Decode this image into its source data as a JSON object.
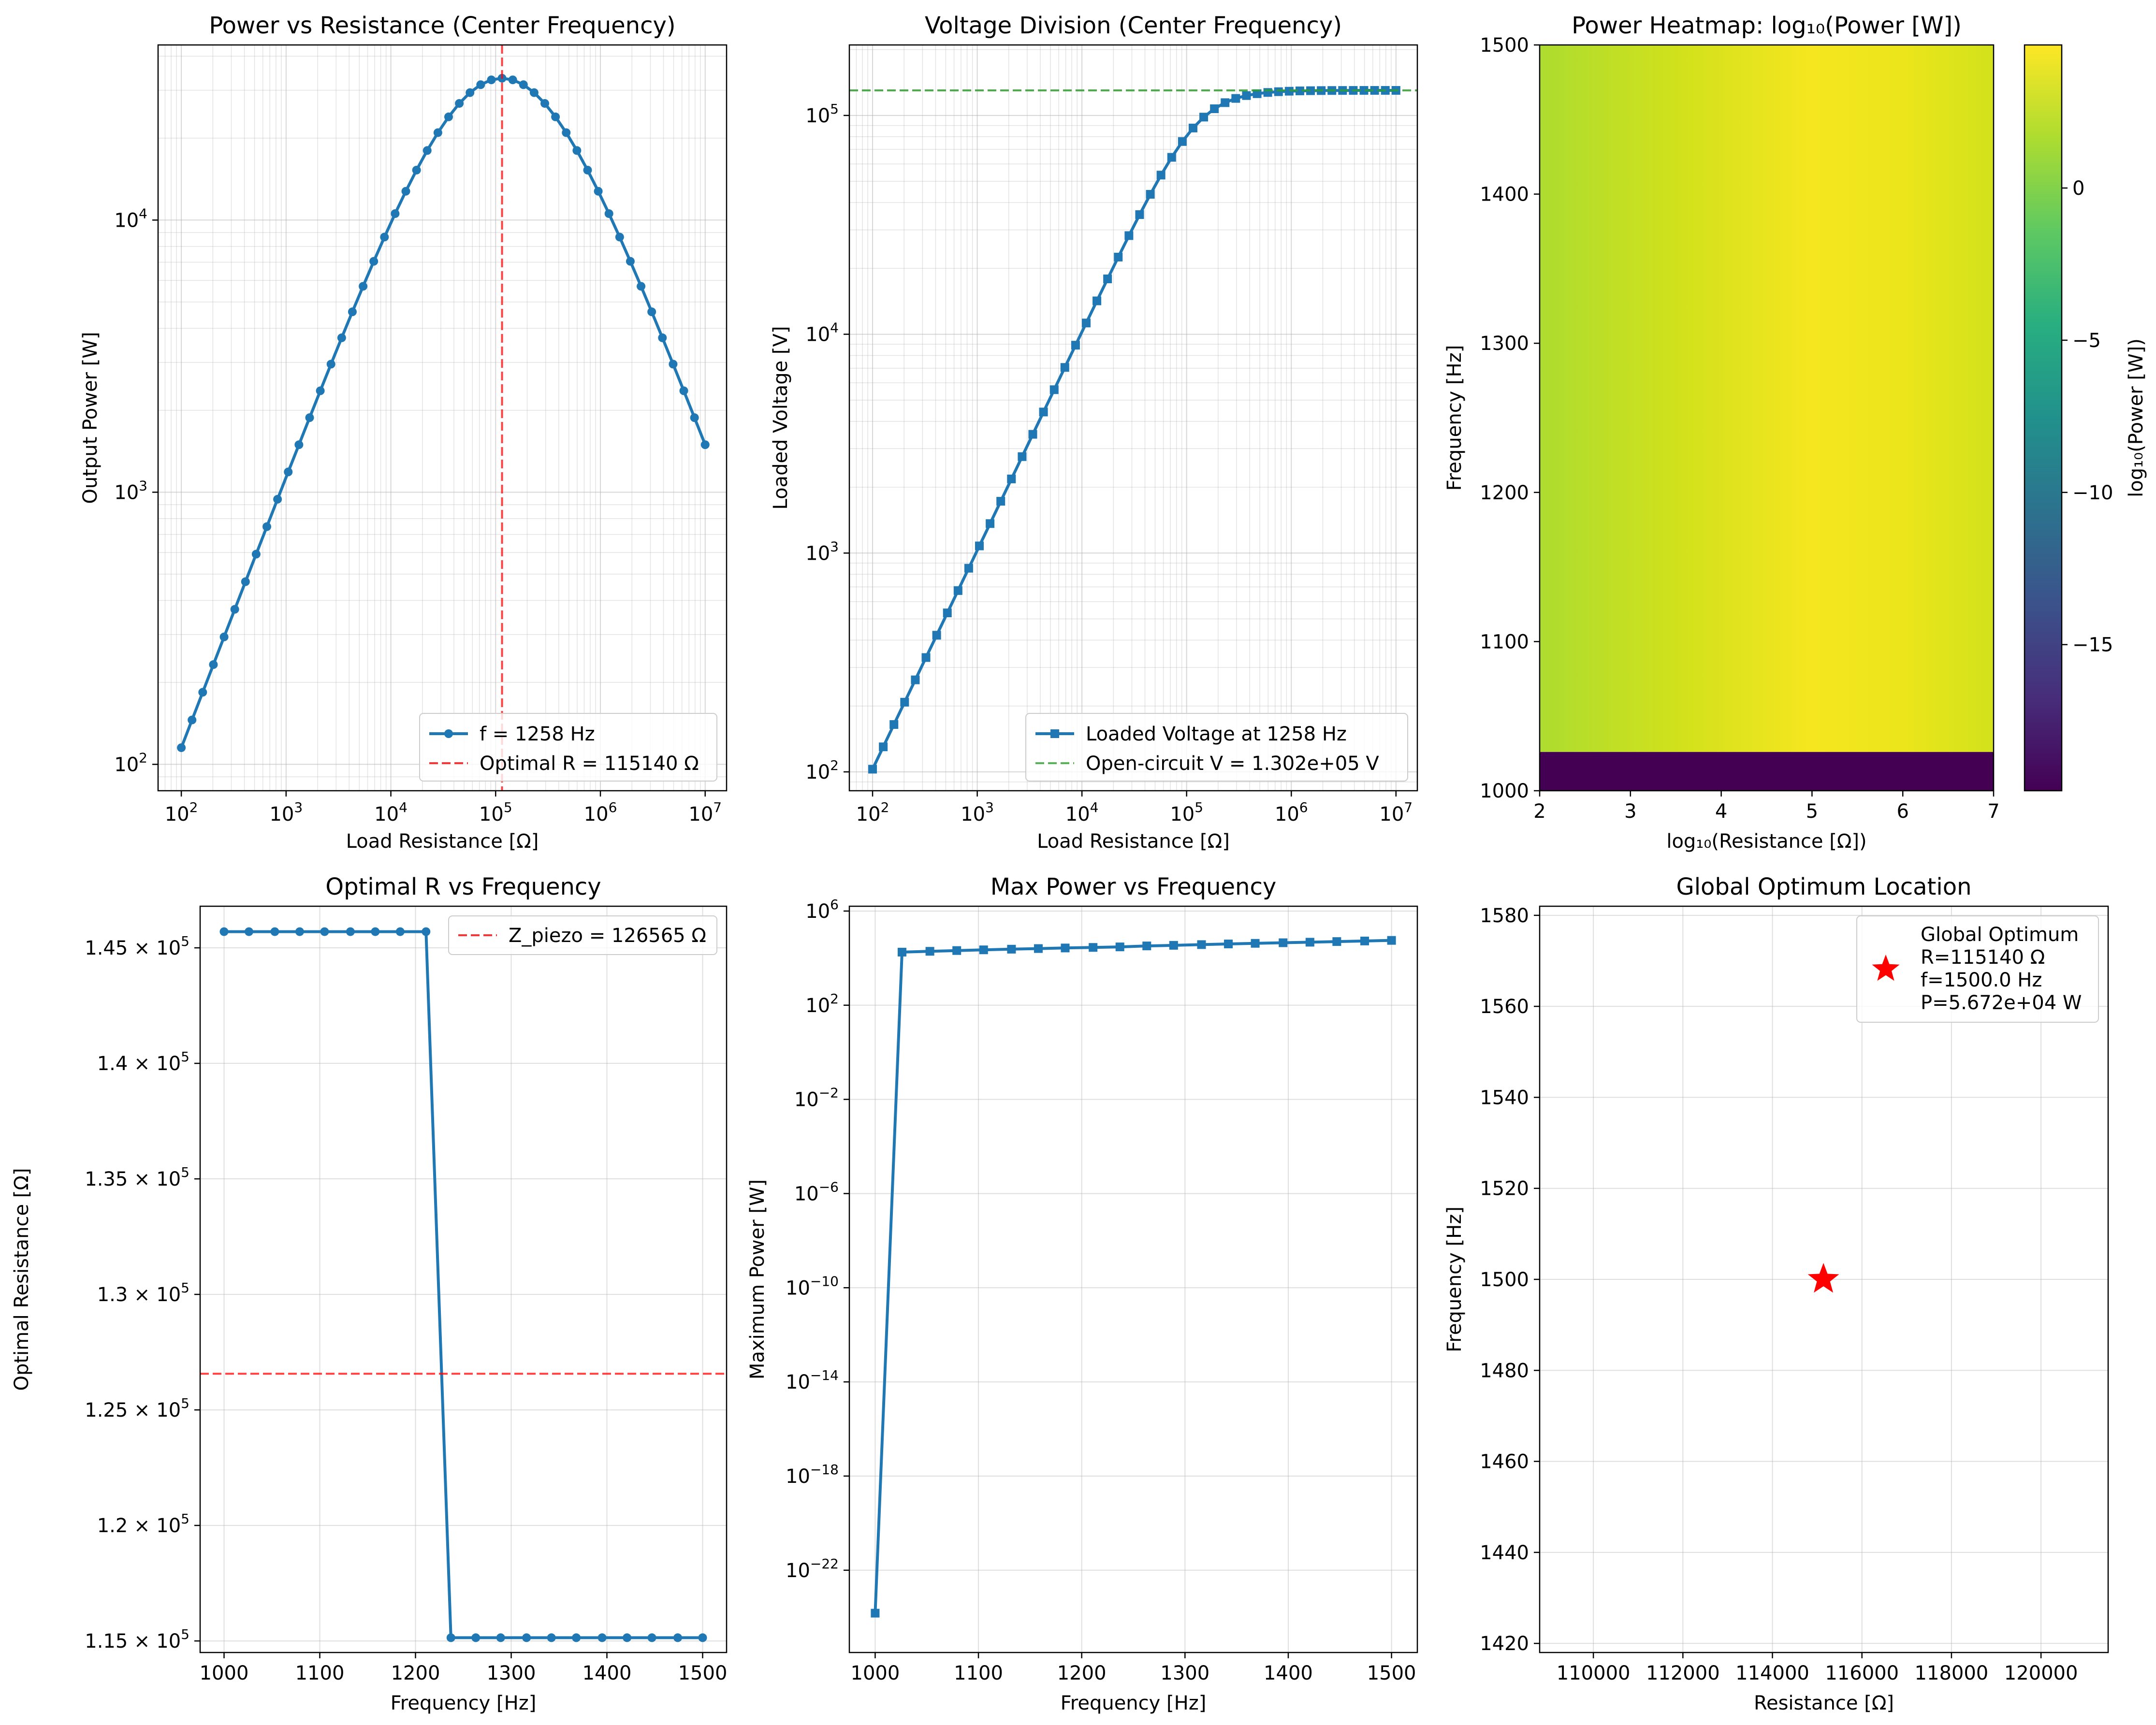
{
  "chart_data": [
    {
      "type": "line",
      "title": "Power vs Resistance (Center Frequency)",
      "xlabel": "Load Resistance [Ω]",
      "ylabel": "Output Power [W]",
      "xscale": "log",
      "yscale": "log",
      "xlim": [
        60,
        16000000
      ],
      "ylim": [
        80,
        44000
      ],
      "xticks": [
        {
          "v": 100,
          "b": "10",
          "e": "2"
        },
        {
          "v": 1000,
          "b": "10",
          "e": "3"
        },
        {
          "v": 10000,
          "b": "10",
          "e": "4"
        },
        {
          "v": 100000,
          "b": "10",
          "e": "5"
        },
        {
          "v": 1000000,
          "b": "10",
          "e": "6"
        },
        {
          "v": 10000000,
          "b": "10",
          "e": "7"
        }
      ],
      "yticks": [
        {
          "v": 100,
          "b": "10",
          "e": "2"
        },
        {
          "v": 1000,
          "b": "10",
          "e": "3"
        },
        {
          "v": 10000,
          "b": "10",
          "e": "4"
        }
      ],
      "grid": true,
      "series": [
        {
          "name": "f = 1258 Hz",
          "color": "#1f77b4",
          "marker": "circle",
          "style": "solid",
          "r_log_start": 2,
          "r_log_end": 7,
          "n_points": 50,
          "x_param": "R_load",
          "peak_R": 115140,
          "peak_power": 33200,
          "y_formula": "P(R) = P_peak * 4*(R/R_peak) / (1 + R/R_peak)^2"
        },
        {
          "name": "Optimal R = 115140 Ω",
          "color": "#ff0000",
          "style": "dashed",
          "vline": 115140
        }
      ],
      "legend": "lower-right"
    },
    {
      "type": "line",
      "title": "Voltage Division (Center Frequency)",
      "xlabel": "Load Resistance [Ω]",
      "ylabel": "Loaded Voltage [V]",
      "xscale": "log",
      "yscale": "log",
      "xlim": [
        60,
        16000000
      ],
      "ylim": [
        82,
        210000
      ],
      "xticks": [
        {
          "v": 100,
          "b": "10",
          "e": "2"
        },
        {
          "v": 1000,
          "b": "10",
          "e": "3"
        },
        {
          "v": 10000,
          "b": "10",
          "e": "4"
        },
        {
          "v": 100000,
          "b": "10",
          "e": "5"
        },
        {
          "v": 1000000,
          "b": "10",
          "e": "6"
        },
        {
          "v": 10000000,
          "b": "10",
          "e": "7"
        }
      ],
      "yticks": [
        {
          "v": 100,
          "b": "10",
          "e": "2"
        },
        {
          "v": 1000,
          "b": "10",
          "e": "3"
        },
        {
          "v": 10000,
          "b": "10",
          "e": "4"
        },
        {
          "v": 100000,
          "b": "10",
          "e": "5"
        }
      ],
      "grid": true,
      "series": [
        {
          "name": "Loaded Voltage at 1258 Hz",
          "color": "#1f77b4",
          "marker": "square",
          "style": "solid",
          "r_log_start": 2,
          "r_log_end": 7,
          "n_points": 50,
          "x_param": "R_load",
          "open_circuit_V": 130200,
          "z_source": 126565,
          "y_formula": "V(R) = V_oc * R / sqrt(R^2 + Z^2)"
        },
        {
          "name": "Open-circuit V = 1.302e+05 V",
          "color": "#2ca02c",
          "style": "dashed",
          "hline": 130200
        }
      ],
      "legend": "lower-right"
    },
    {
      "type": "heatmap",
      "title": "Power Heatmap: log₁₀(Power [W])",
      "xlabel": "log₁₀(Resistance [Ω])",
      "ylabel": "Frequency [Hz]",
      "xlim": [
        2,
        7
      ],
      "ylim": [
        1000,
        1500
      ],
      "xticks": [
        2,
        3,
        4,
        5,
        6,
        7
      ],
      "yticks": [
        1000,
        1100,
        1200,
        1300,
        1400,
        1500
      ],
      "colorbar": {
        "label": "log₁₀(Power [W])",
        "range": [
          -19.8,
          4.7
        ],
        "colormap": "viridis",
        "ticks": [
          {
            "v": 0,
            "t": "0"
          },
          {
            "v": -5,
            "t": "−5"
          },
          {
            "v": -10,
            "t": "−10"
          },
          {
            "v": -15,
            "t": "−15"
          }
        ]
      },
      "rows": [
        {
          "freq_from": 1000,
          "freq_to": 1026,
          "log_power": -19.8
        },
        {
          "freq_from": 1026,
          "freq_to": 1500,
          "log_power_min_at_R2": 2.0,
          "log_power_max_at_R5": 4.7
        }
      ]
    },
    {
      "type": "line",
      "title": "Optimal R vs Frequency",
      "xlabel": "Frequency [Hz]",
      "ylabel": "Optimal Resistance [Ω]",
      "xlim": [
        975,
        1525
      ],
      "ylim": [
        114500,
        146800
      ],
      "xticks": [
        1000,
        1100,
        1200,
        1300,
        1400,
        1500
      ],
      "yticks": [
        {
          "v": 145000,
          "m": "1.45"
        },
        {
          "v": 140000,
          "m": "1.4"
        },
        {
          "v": 135000,
          "m": "1.35"
        },
        {
          "v": 130000,
          "m": "1.3"
        },
        {
          "v": 125000,
          "m": "1.25"
        },
        {
          "v": 120000,
          "m": "1.2"
        },
        {
          "v": 115000,
          "m": "1.15"
        }
      ],
      "ytick_mult": "10",
      "ytick_exp": "5",
      "grid": true,
      "series": [
        {
          "name": "",
          "color": "#1f77b4",
          "marker": "circle",
          "style": "solid",
          "x": [
            1000,
            1026,
            1053,
            1079,
            1105,
            1132,
            1158,
            1184,
            1211,
            1237,
            1263,
            1289,
            1316,
            1342,
            1368,
            1395,
            1421,
            1447,
            1474,
            1500
          ],
          "y": [
            145700,
            145700,
            145700,
            145700,
            145700,
            145700,
            145700,
            145700,
            145700,
            115140,
            115140,
            115140,
            115140,
            115140,
            115140,
            115140,
            115140,
            115140,
            115140,
            115140
          ]
        },
        {
          "name": "Z_piezo = 126565 Ω",
          "color": "#ff0000",
          "style": "dashed",
          "hline": 126565
        }
      ],
      "legend": "upper-right"
    },
    {
      "type": "line",
      "title": "Max Power vs Frequency",
      "xlabel": "Frequency [Hz]",
      "ylabel": "Maximum Power [W]",
      "yscale": "log",
      "xlim": [
        975,
        1525
      ],
      "ylim": [
        3.2e-26,
        1600000.0
      ],
      "xticks": [
        1000,
        1100,
        1200,
        1300,
        1400,
        1500
      ],
      "yticks": [
        {
          "v": 1000000.0,
          "b": "10",
          "e": "6"
        },
        {
          "v": 100.0,
          "b": "10",
          "e": "2"
        },
        {
          "v": 0.01,
          "b": "10",
          "e": "−2"
        },
        {
          "v": 1e-06,
          "b": "10",
          "e": "−6"
        },
        {
          "v": 1e-10,
          "b": "10",
          "e": "−10"
        },
        {
          "v": 1e-14,
          "b": "10",
          "e": "−14"
        },
        {
          "v": 1e-18,
          "b": "10",
          "e": "−18"
        },
        {
          "v": 1e-22,
          "b": "10",
          "e": "−22"
        }
      ],
      "grid": true,
      "series": [
        {
          "name": "",
          "color": "#1f77b4",
          "marker": "square",
          "style": "solid",
          "x": [
            1000,
            1026,
            1053,
            1079,
            1105,
            1132,
            1158,
            1184,
            1211,
            1237,
            1263,
            1289,
            1316,
            1342,
            1368,
            1395,
            1421,
            1447,
            1474,
            1500
          ],
          "y": [
            1.5e-24,
            18000,
            19500,
            21000,
            22500,
            24000,
            25500,
            27000,
            28500,
            30000,
            33000,
            35000,
            37500,
            40000,
            42500,
            45000,
            47500,
            50500,
            53500,
            56720
          ]
        }
      ]
    },
    {
      "type": "scatter",
      "title": "Global Optimum Location",
      "xlabel": "Resistance [Ω]",
      "ylabel": "Frequency [Hz]",
      "xlim": [
        108800,
        121500
      ],
      "ylim": [
        1418,
        1582
      ],
      "xticks": [
        110000,
        112000,
        114000,
        116000,
        118000,
        120000
      ],
      "yticks": [
        1420,
        1440,
        1460,
        1480,
        1500,
        1520,
        1540,
        1560,
        1580
      ],
      "grid": true,
      "series": [
        {
          "name": "Global Optimum\nR=115140 Ω\nf=1500.0 Hz\nP=5.672e+04 W",
          "color": "#ff0000",
          "marker": "star",
          "x": [
            115140
          ],
          "y": [
            1500
          ]
        }
      ],
      "legend": "upper-right"
    }
  ]
}
